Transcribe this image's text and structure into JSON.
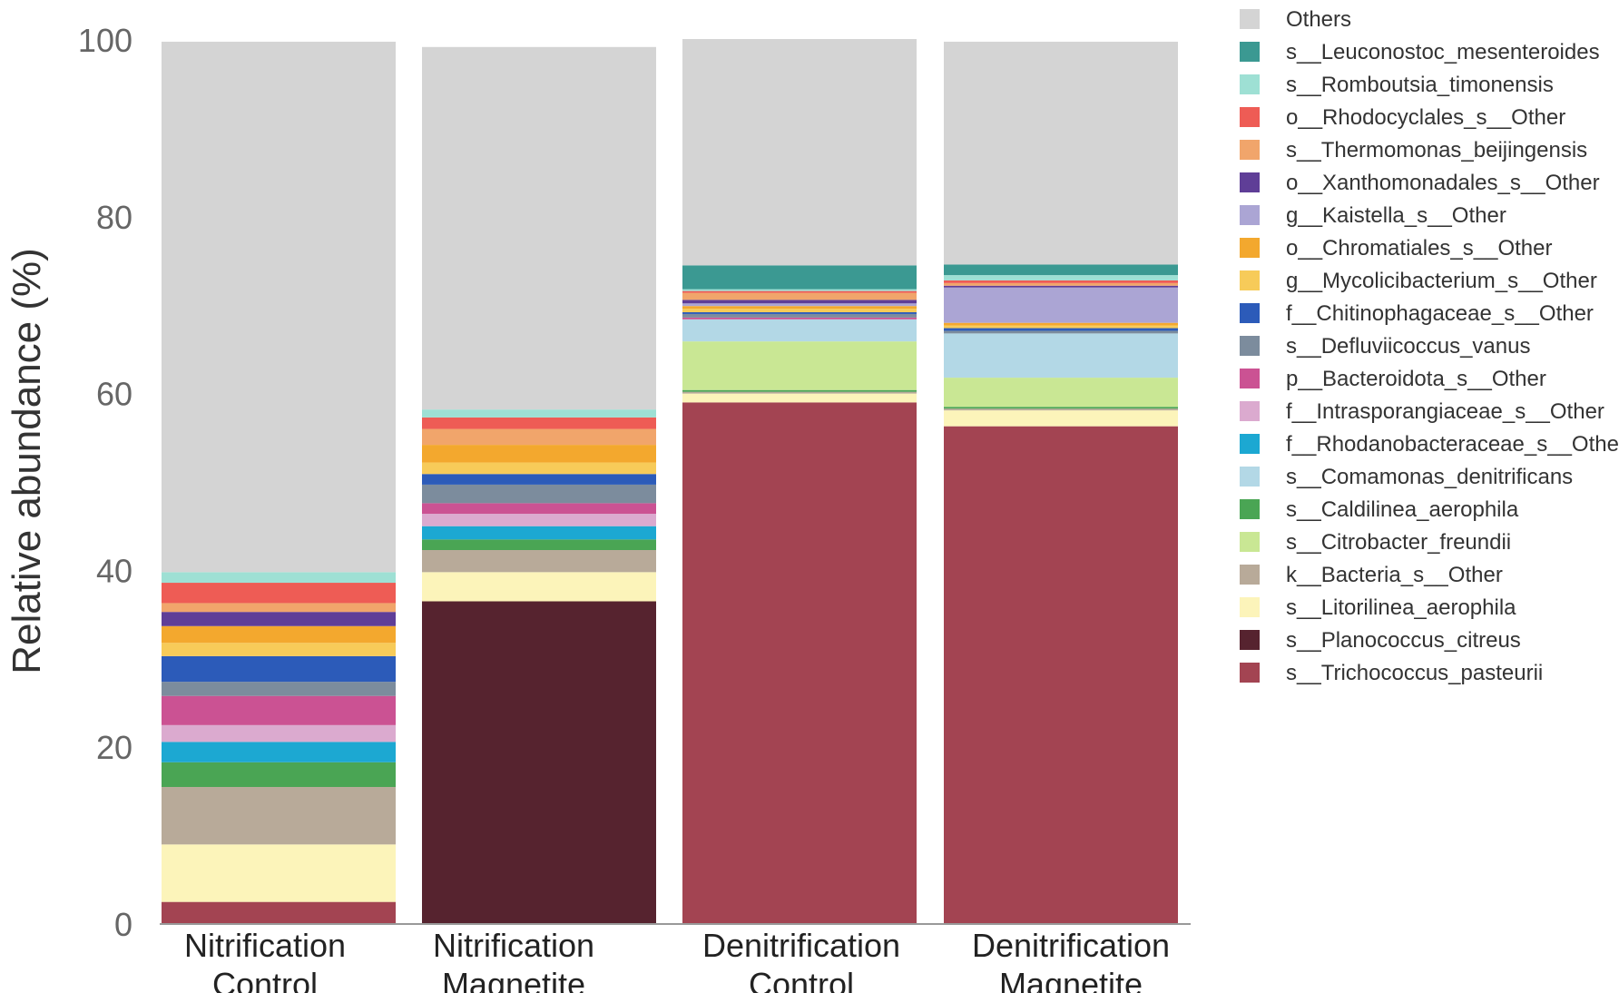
{
  "chart_data": {
    "type": "bar",
    "stacked": true,
    "ylabel": "Relative abundance (%)",
    "xlabel": "",
    "ylim": [
      0,
      100
    ],
    "yticks": [
      0,
      20,
      40,
      60,
      80,
      100
    ],
    "grid": false,
    "legend_position": "right",
    "categories": [
      [
        "Nitrification",
        "Control"
      ],
      [
        "Nitrification",
        "Magnetite"
      ],
      [
        "Denitrification",
        "Control"
      ],
      [
        "Denitrification",
        "Magnetite"
      ]
    ],
    "series": [
      {
        "name": "s__Trichococcus_pasteurii",
        "color": "#a34452",
        "values": [
          2.5,
          0.0,
          59.0,
          56.3
        ]
      },
      {
        "name": "s__Planococcus_citreus",
        "color": "#56232f",
        "values": [
          0.0,
          36.5,
          0.0,
          0.0
        ]
      },
      {
        "name": "s__Litorilinea_aerophila",
        "color": "#fcf4ba",
        "values": [
          6.5,
          3.3,
          1.0,
          1.8
        ]
      },
      {
        "name": "k__Bacteria_s__Other",
        "color": "#b8aa99",
        "values": [
          6.5,
          2.5,
          0.2,
          0.2
        ]
      },
      {
        "name": "s__Caldilinea_aerophila",
        "color": "#4aa554",
        "values": [
          2.8,
          1.2,
          0.2,
          0.2
        ]
      },
      {
        "name": "s__Citrobacter_freundii",
        "color": "#c9e794",
        "values": [
          0.0,
          0.0,
          5.5,
          3.3
        ]
      },
      {
        "name": "s__Comamonas_denitrificans",
        "color": "#b3d8e6",
        "values": [
          0.0,
          0.0,
          2.5,
          5.0
        ]
      },
      {
        "name": "f__Rhodanobacteraceae_s__Other",
        "color": "#1ca8d2",
        "values": [
          2.3,
          1.5,
          0.0,
          0.0
        ]
      },
      {
        "name": "f__Intrasporangiaceae_s__Other",
        "color": "#dbaacf",
        "values": [
          1.9,
          1.4,
          0.0,
          0.0
        ]
      },
      {
        "name": "p__Bacteroidota_s__Other",
        "color": "#cb5293",
        "values": [
          3.3,
          1.2,
          0.2,
          0.0
        ]
      },
      {
        "name": "s__Defluviicoccus_vanus",
        "color": "#7c8c9d",
        "values": [
          1.6,
          2.1,
          0.4,
          0.3
        ]
      },
      {
        "name": "f__Chitinophagaceae_s__Other",
        "color": "#2c5bb9",
        "values": [
          2.9,
          1.2,
          0.2,
          0.3
        ]
      },
      {
        "name": "g__Mycolicibacterium_s__Other",
        "color": "#f7cb59",
        "values": [
          1.5,
          1.3,
          0.4,
          0.3
        ]
      },
      {
        "name": "o__Chromatiales_s__Other",
        "color": "#f3a82e",
        "values": [
          1.9,
          2.0,
          0.3,
          0.3
        ]
      },
      {
        "name": "g__Kaistella_s__Other",
        "color": "#aba5d4",
        "values": [
          0.0,
          0.0,
          0.3,
          4.0
        ]
      },
      {
        "name": "o__Xanthomonadales_s__Other",
        "color": "#5f3e97",
        "values": [
          1.6,
          0.0,
          0.4,
          0.2
        ]
      },
      {
        "name": "s__Thermomonas_beijingensis",
        "color": "#f1a56b",
        "values": [
          1.0,
          1.8,
          0.8,
          0.3
        ]
      },
      {
        "name": "o__Rhodocyclales_s__Other",
        "color": "#ee5c55",
        "values": [
          2.3,
          1.3,
          0.2,
          0.3
        ]
      },
      {
        "name": "s__Romboutsia_timonensis",
        "color": "#9ee0d4",
        "values": [
          1.2,
          0.9,
          0.2,
          0.6
        ]
      },
      {
        "name": "s__Leuconostoc_mesenteroides",
        "color": "#3b9992",
        "values": [
          0.0,
          0.0,
          2.7,
          1.2
        ]
      },
      {
        "name": "Others",
        "color": "#d4d4d4",
        "values": [
          60.0,
          41.0,
          25.6,
          25.2
        ]
      }
    ],
    "legend_order": [
      "Others",
      "s__Leuconostoc_mesenteroides",
      "s__Romboutsia_timonensis",
      "o__Rhodocyclales_s__Other",
      "s__Thermomonas_beijingensis",
      "o__Xanthomonadales_s__Other",
      "g__Kaistella_s__Other",
      "o__Chromatiales_s__Other",
      "g__Mycolicibacterium_s__Other",
      "f__Chitinophagaceae_s__Other",
      "s__Defluviicoccus_vanus",
      "p__Bacteroidota_s__Other",
      "f__Intrasporangiaceae_s__Other",
      "f__Rhodanobacteraceae_s__Other",
      "s__Comamonas_denitrificans",
      "s__Caldilinea_aerophila",
      "s__Citrobacter_freundii",
      "k__Bacteria_s__Other",
      "s__Litorilinea_aerophila",
      "s__Planococcus_citreus",
      "s__Trichococcus_pasteurii"
    ]
  }
}
